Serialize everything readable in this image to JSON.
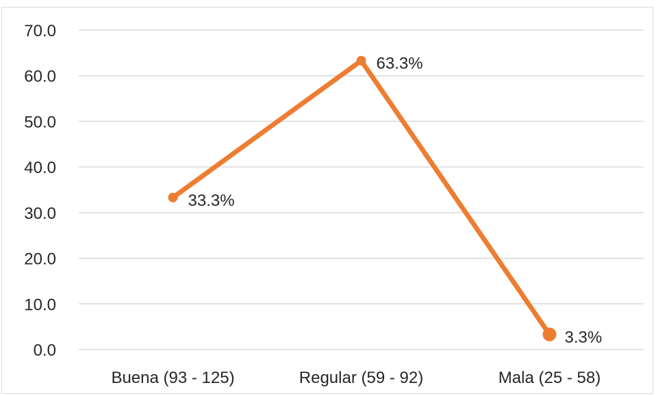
{
  "chart_data": {
    "type": "line",
    "categories": [
      "Buena (93 - 125)",
      "Regular (59 - 92)",
      "Mala (25 - 58)"
    ],
    "series": [
      {
        "values": [
          33.3,
          63.3,
          3.3
        ],
        "labels": [
          "33.3%",
          "63.3%",
          "3.3%"
        ],
        "color": "#ed7d31"
      }
    ],
    "y_ticks": [
      "0.0",
      "10.0",
      "20.0",
      "30.0",
      "40.0",
      "50.0",
      "60.0",
      "70.0"
    ],
    "ylim": [
      0,
      70
    ],
    "grid": true,
    "legend": "none",
    "gridline_color": "#d9d9d9",
    "text_color": "#262626"
  }
}
